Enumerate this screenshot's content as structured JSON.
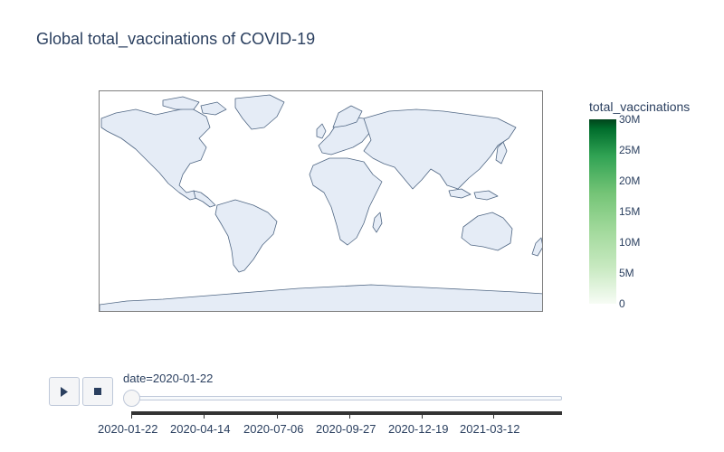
{
  "title": "Global total_vaccinations of COVID-19",
  "colors": {
    "land": "#e5ecf6",
    "coast": "#506784",
    "text": "#2a3f5f",
    "colorscale": [
      "#f7fcf5",
      "#c7e9c0",
      "#a1d99b",
      "#74c476",
      "#31a354",
      "#006d2c",
      "#00441b"
    ]
  },
  "colorbar": {
    "title": "total_vaccinations",
    "ticks": [
      "30M",
      "25M",
      "20M",
      "15M",
      "10M",
      "5M",
      "0"
    ]
  },
  "controls": {
    "play_icon": "play-icon",
    "stop_icon": "stop-icon"
  },
  "slider": {
    "current_label": "date=2020-01-22",
    "ticks": [
      "2020-01-22",
      "2020-04-14",
      "2020-07-06",
      "2020-09-27",
      "2020-12-19",
      "2021-03-12"
    ]
  }
}
